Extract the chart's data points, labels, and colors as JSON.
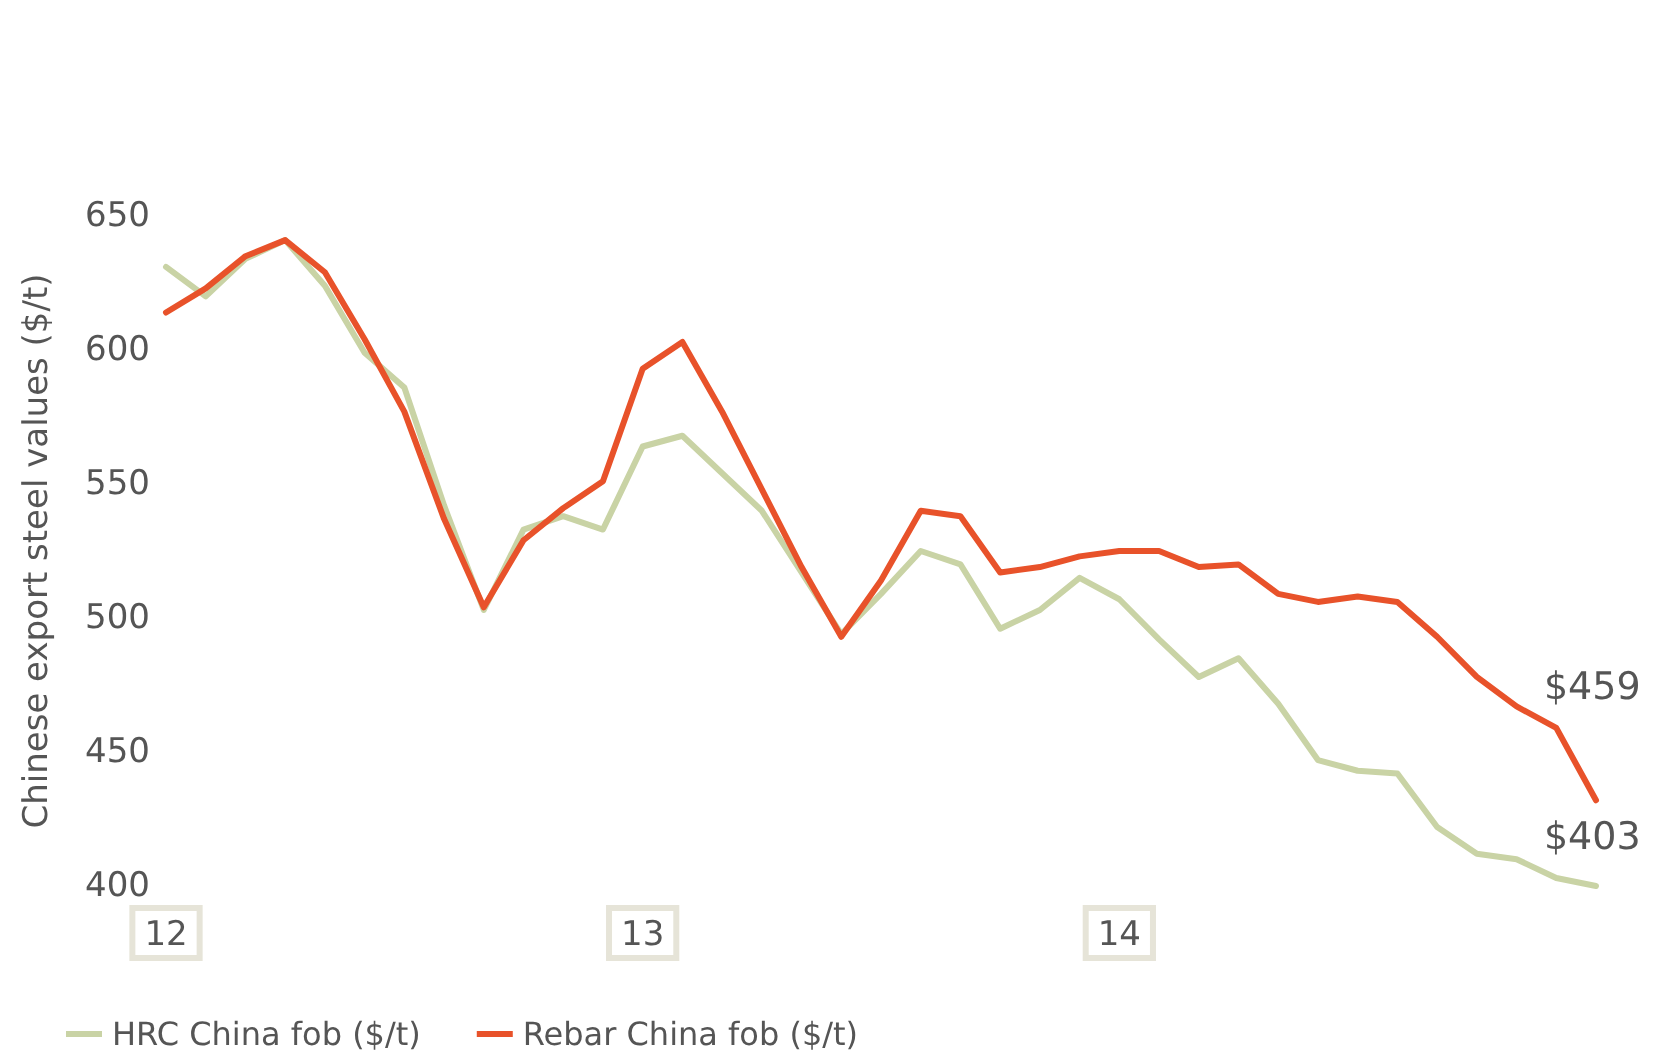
{
  "chart_data": {
    "type": "line",
    "ylabel": "Chinese export steel values ($/t)",
    "categories": [
      "12",
      null,
      null,
      null,
      null,
      null,
      null,
      null,
      null,
      null,
      null,
      null,
      "13",
      null,
      null,
      null,
      null,
      null,
      null,
      null,
      null,
      null,
      null,
      null,
      "14",
      null,
      null,
      null,
      null,
      null,
      null,
      null,
      null,
      null,
      null,
      null,
      null
    ],
    "series": [
      {
        "name": "HRC China fob ($/t)",
        "color": "#c9d3a5",
        "values": [
          631,
          620,
          634,
          641,
          624,
          599,
          586,
          542,
          503,
          533,
          538,
          533,
          564,
          568,
          554,
          540,
          517,
          494,
          509,
          525,
          520,
          496,
          503,
          515,
          507,
          492,
          478,
          485,
          468,
          447,
          443,
          442,
          422,
          412,
          410,
          403,
          400
        ],
        "value_labels": [
          null,
          null,
          null,
          null,
          null,
          null,
          null,
          null,
          null,
          null,
          null,
          null,
          null,
          null,
          null,
          null,
          null,
          null,
          null,
          null,
          null,
          null,
          null,
          null,
          null,
          null,
          null,
          null,
          null,
          null,
          null,
          null,
          null,
          null,
          null,
          "$403",
          null
        ]
      },
      {
        "name": "Rebar China fob ($/t)",
        "color": "#e8522a",
        "values": [
          614,
          623,
          635,
          641,
          629,
          604,
          577,
          537,
          504,
          529,
          541,
          551,
          593,
          603,
          577,
          548,
          519,
          493,
          514,
          540,
          538,
          517,
          519,
          523,
          525,
          525,
          519,
          520,
          509,
          506,
          508,
          506,
          493,
          478,
          467,
          459,
          432
        ],
        "value_labels": [
          null,
          null,
          null,
          null,
          null,
          null,
          null,
          null,
          null,
          null,
          null,
          null,
          null,
          null,
          null,
          null,
          null,
          null,
          null,
          null,
          null,
          null,
          null,
          null,
          null,
          null,
          null,
          null,
          null,
          null,
          null,
          null,
          null,
          null,
          null,
          "$459",
          null
        ]
      }
    ],
    "ylim": [
      400,
      650
    ],
    "yticks": [
      400,
      450,
      500,
      550,
      600,
      650
    ],
    "grid": false,
    "legend": "bottom left",
    "marker": "none",
    "line_style": "solid"
  }
}
